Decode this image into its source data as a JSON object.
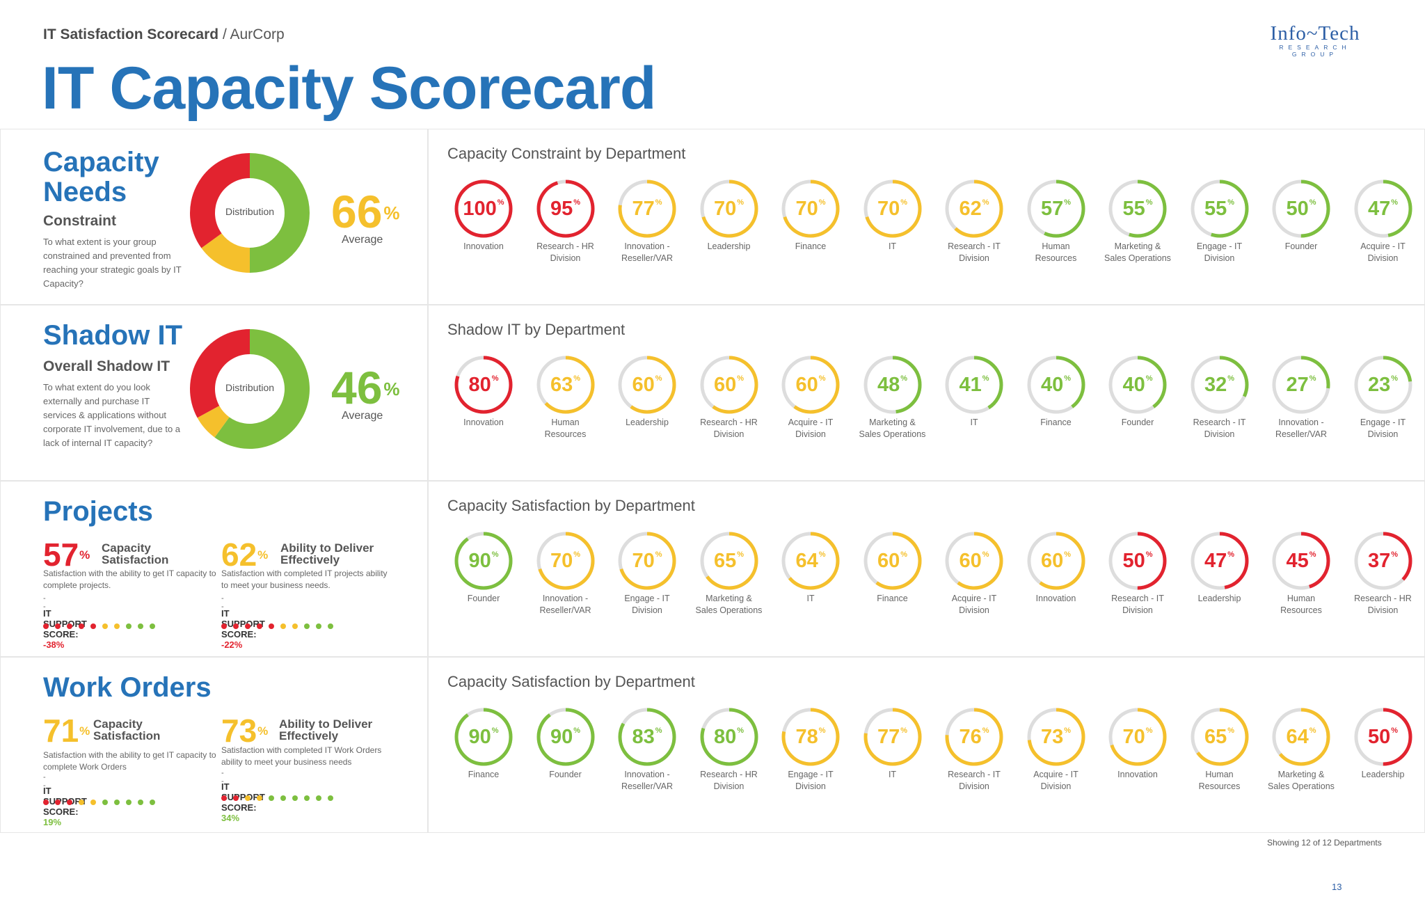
{
  "header": {
    "breadcrumb_bold": "IT Satisfaction Scorecard",
    "breadcrumb_sep": "/",
    "breadcrumb_rest": "AurCorp",
    "title": "IT Capacity Scorecard",
    "logo_name": "Info~Tech",
    "logo_sub": "RESEARCH GROUP"
  },
  "colors": {
    "red": "#e2232f",
    "yellow": "#f5c02c",
    "green": "#7dbf3f",
    "blue": "#2673b8",
    "track": "#dddddd"
  },
  "capacity_needs": {
    "title_line1": "Capacity",
    "title_line2": "Needs",
    "subtitle": "Constraint",
    "description": "To what extent is your group constrained and prevented from reaching your strategic goals by IT Capacity?",
    "donut_label": "Distribution",
    "distribution": {
      "green": 0.5,
      "yellow": 0.15,
      "red": 0.35
    },
    "value": "66",
    "pct": "%",
    "avg_label": "Average"
  },
  "shadow_it": {
    "title": "Shadow IT",
    "subtitle": "Overall Shadow IT",
    "description": "To what extent do you look externally and purchase IT services & applications without corporate IT involvement, due to a lack of internal IT capacity?",
    "donut_label": "Distribution",
    "distribution": {
      "green": 0.6,
      "yellow": 0.07,
      "red": 0.33
    },
    "value": "46",
    "pct": "%",
    "avg_label": "Average"
  },
  "projects": {
    "title": "Projects",
    "metric1": {
      "value": "57",
      "pct": "%",
      "label_line1": "Capacity",
      "label_line2": "Satisfaction",
      "description": "Satisfaction with the ability to get IT capacity to complete projects.",
      "dash": "--",
      "score_label": "IT SUPPORT SCORE:",
      "score_value": "-38%",
      "dots": [
        "red",
        "red",
        "red",
        "red",
        "red",
        "yellow",
        "yellow",
        "green",
        "green",
        "green"
      ]
    },
    "metric2": {
      "value": "62",
      "pct": "%",
      "label_line1": "Ability to Deliver",
      "label_line2": "Effectively",
      "description": "Satisfaction with completed IT projects ability to meet your business needs.",
      "dash": "--",
      "score_label": "IT SUPPORT SCORE:",
      "score_value": "-22%",
      "dots": [
        "red",
        "red",
        "red",
        "red",
        "red",
        "yellow",
        "yellow",
        "green",
        "green",
        "green"
      ]
    }
  },
  "work_orders": {
    "title": "Work Orders",
    "metric1": {
      "value": "71",
      "pct": "%",
      "label_line1": "Capacity",
      "label_line2": "Satisfaction",
      "description": "Satisfaction with the ability to get IT capacity to complete Work Orders",
      "dash": "--",
      "score_label": "IT SUPPORT SCORE:",
      "score_value": "19%",
      "dots": [
        "red",
        "red",
        "red",
        "yellow",
        "yellow",
        "green",
        "green",
        "green",
        "green",
        "green"
      ]
    },
    "metric2": {
      "value": "73",
      "pct": "%",
      "label_line1": "Ability to Deliver",
      "label_line2": "Effectively",
      "description": "Satisfaction with completed IT Work Orders ability to meet your business needs",
      "dash": "--",
      "score_label": "IT SUPPORT SCORE:",
      "score_value": "34%",
      "dots": [
        "red",
        "red",
        "yellow",
        "yellow",
        "green",
        "green",
        "green",
        "green",
        "green",
        "green"
      ]
    }
  },
  "rows": [
    {
      "title": "Capacity Constraint by Department",
      "items": [
        {
          "value": 100,
          "color": "red",
          "label": [
            "Innovation"
          ]
        },
        {
          "value": 95,
          "color": "red",
          "label": [
            "Research - HR",
            "Division"
          ]
        },
        {
          "value": 77,
          "color": "yellow",
          "label": [
            "Innovation -",
            "Reseller/VAR"
          ]
        },
        {
          "value": 70,
          "color": "yellow",
          "label": [
            "Leadership"
          ]
        },
        {
          "value": 70,
          "color": "yellow",
          "label": [
            "Finance"
          ]
        },
        {
          "value": 70,
          "color": "yellow",
          "label": [
            "IT"
          ]
        },
        {
          "value": 62,
          "color": "yellow",
          "label": [
            "Research - IT",
            "Division"
          ]
        },
        {
          "value": 57,
          "color": "green",
          "label": [
            "Human",
            "Resources"
          ]
        },
        {
          "value": 55,
          "color": "green",
          "label": [
            "Marketing &",
            "Sales Operations"
          ]
        },
        {
          "value": 55,
          "color": "green",
          "label": [
            "Engage - IT",
            "Division"
          ]
        },
        {
          "value": 50,
          "color": "green",
          "label": [
            "Founder"
          ]
        },
        {
          "value": 47,
          "color": "green",
          "label": [
            "Acquire - IT",
            "Division"
          ]
        }
      ]
    },
    {
      "title": "Shadow IT by Department",
      "items": [
        {
          "value": 80,
          "color": "red",
          "label": [
            "Innovation"
          ]
        },
        {
          "value": 63,
          "color": "yellow",
          "label": [
            "Human",
            "Resources"
          ]
        },
        {
          "value": 60,
          "color": "yellow",
          "label": [
            "Leadership"
          ]
        },
        {
          "value": 60,
          "color": "yellow",
          "label": [
            "Research - HR",
            "Division"
          ]
        },
        {
          "value": 60,
          "color": "yellow",
          "label": [
            "Acquire - IT",
            "Division"
          ]
        },
        {
          "value": 48,
          "color": "green",
          "label": [
            "Marketing &",
            "Sales Operations"
          ]
        },
        {
          "value": 41,
          "color": "green",
          "label": [
            "IT"
          ]
        },
        {
          "value": 40,
          "color": "green",
          "label": [
            "Finance"
          ]
        },
        {
          "value": 40,
          "color": "green",
          "label": [
            "Founder"
          ]
        },
        {
          "value": 32,
          "color": "green",
          "label": [
            "Research - IT",
            "Division"
          ]
        },
        {
          "value": 27,
          "color": "green",
          "label": [
            "Innovation -",
            "Reseller/VAR"
          ]
        },
        {
          "value": 23,
          "color": "green",
          "label": [
            "Engage - IT",
            "Division"
          ]
        }
      ]
    },
    {
      "title": "Capacity Satisfaction by Department",
      "items": [
        {
          "value": 90,
          "color": "green",
          "label": [
            "Founder"
          ]
        },
        {
          "value": 70,
          "color": "yellow",
          "label": [
            "Innovation -",
            "Reseller/VAR"
          ]
        },
        {
          "value": 70,
          "color": "yellow",
          "label": [
            "Engage - IT",
            "Division"
          ]
        },
        {
          "value": 65,
          "color": "yellow",
          "label": [
            "Marketing &",
            "Sales Operations"
          ]
        },
        {
          "value": 64,
          "color": "yellow",
          "label": [
            "IT"
          ]
        },
        {
          "value": 60,
          "color": "yellow",
          "label": [
            "Finance"
          ]
        },
        {
          "value": 60,
          "color": "yellow",
          "label": [
            "Acquire - IT",
            "Division"
          ]
        },
        {
          "value": 60,
          "color": "yellow",
          "label": [
            "Innovation"
          ]
        },
        {
          "value": 50,
          "color": "red",
          "label": [
            "Research - IT",
            "Division"
          ]
        },
        {
          "value": 47,
          "color": "red",
          "label": [
            "Leadership"
          ]
        },
        {
          "value": 45,
          "color": "red",
          "label": [
            "Human",
            "Resources"
          ]
        },
        {
          "value": 37,
          "color": "red",
          "label": [
            "Research - HR",
            "Division"
          ]
        }
      ]
    },
    {
      "title": "Capacity Satisfaction by Department",
      "items": [
        {
          "value": 90,
          "color": "green",
          "label": [
            "Finance"
          ]
        },
        {
          "value": 90,
          "color": "green",
          "label": [
            "Founder"
          ]
        },
        {
          "value": 83,
          "color": "green",
          "label": [
            "Innovation -",
            "Reseller/VAR"
          ]
        },
        {
          "value": 80,
          "color": "green",
          "label": [
            "Research - HR",
            "Division"
          ]
        },
        {
          "value": 78,
          "color": "yellow",
          "label": [
            "Engage - IT",
            "Division"
          ]
        },
        {
          "value": 77,
          "color": "yellow",
          "label": [
            "IT"
          ]
        },
        {
          "value": 76,
          "color": "yellow",
          "label": [
            "Research - IT",
            "Division"
          ]
        },
        {
          "value": 73,
          "color": "yellow",
          "label": [
            "Acquire - IT",
            "Division"
          ]
        },
        {
          "value": 70,
          "color": "yellow",
          "label": [
            "Innovation"
          ]
        },
        {
          "value": 65,
          "color": "yellow",
          "label": [
            "Human",
            "Resources"
          ]
        },
        {
          "value": 64,
          "color": "yellow",
          "label": [
            "Marketing &",
            "Sales Operations"
          ]
        },
        {
          "value": 50,
          "color": "red",
          "label": [
            "Leadership"
          ]
        }
      ]
    }
  ],
  "gauge_pct": "%",
  "footer": {
    "count": "Showing 12 of 12 Departments",
    "page": "13"
  }
}
